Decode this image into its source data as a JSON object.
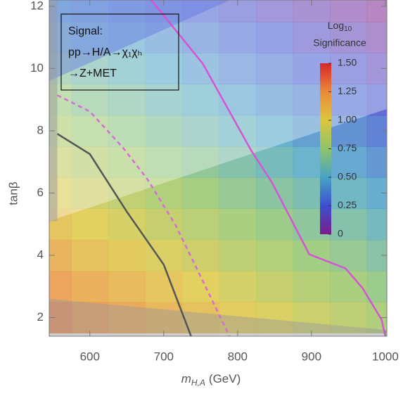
{
  "chart_data": {
    "type": "heatmap",
    "xlabel": [
      "m",
      "H,A",
      "(GeV)"
    ],
    "ylabel": "tanβ",
    "annotation": [
      "Signal:",
      "pp→H/A→χ₁χₕ",
      "→Z+MET"
    ],
    "colorbar_title": [
      "Log",
      "10",
      "Significance"
    ],
    "x": [
      550,
      600,
      650,
      700,
      750,
      800,
      850,
      900,
      950,
      1000
    ],
    "y": [
      2,
      3,
      4,
      5,
      6,
      7,
      8,
      9,
      10,
      11,
      12
    ],
    "z": [
      [
        1.3,
        1.24,
        1.19,
        1.13,
        1.08,
        1.02,
        0.97,
        0.91,
        0.86,
        0.8
      ],
      [
        1.22,
        1.16,
        1.11,
        1.05,
        1.0,
        0.94,
        0.89,
        0.83,
        0.78,
        0.72
      ],
      [
        1.14,
        1.08,
        1.03,
        0.97,
        0.92,
        0.86,
        0.81,
        0.75,
        0.7,
        0.64
      ],
      [
        1.06,
        1.0,
        0.95,
        0.89,
        0.84,
        0.78,
        0.73,
        0.67,
        0.62,
        0.56
      ],
      [
        0.98,
        0.92,
        0.87,
        0.81,
        0.76,
        0.7,
        0.65,
        0.59,
        0.54,
        0.48
      ],
      [
        0.9,
        0.84,
        0.79,
        0.73,
        0.68,
        0.62,
        0.57,
        0.51,
        0.46,
        0.4
      ],
      [
        0.82,
        0.76,
        0.71,
        0.65,
        0.6,
        0.54,
        0.49,
        0.43,
        0.38,
        0.32
      ],
      [
        0.74,
        0.68,
        0.63,
        0.57,
        0.52,
        0.46,
        0.41,
        0.35,
        0.3,
        0.24
      ],
      [
        0.66,
        0.6,
        0.55,
        0.49,
        0.44,
        0.38,
        0.33,
        0.27,
        0.22,
        0.16
      ],
      [
        0.58,
        0.52,
        0.47,
        0.41,
        0.36,
        0.3,
        0.25,
        0.19,
        0.14,
        0.08
      ],
      [
        0.5,
        0.44,
        0.39,
        0.33,
        0.28,
        0.22,
        0.17,
        0.11,
        0.06,
        0.0
      ]
    ],
    "cell_size": [
      50,
      1
    ],
    "xlim": [
      545,
      1002
    ],
    "ylim": [
      1.4,
      12.2
    ],
    "xticks": [
      600,
      700,
      800,
      900,
      1000
    ],
    "yticks": [
      2,
      4,
      6,
      8,
      10,
      12
    ],
    "zlim": [
      0,
      1.5
    ],
    "zticks": [
      0,
      0.25,
      {
        "value": 0.5,
        "label": "0.50"
      },
      0.75,
      {
        "value": 1,
        "label": "1.00"
      },
      1.25,
      {
        "value": 1.5,
        "label": "1.50"
      }
    ],
    "colorscale": [
      "#7a1d8c",
      "#3d4fd0",
      "#47a3c4",
      "#8fc46a",
      "#dcc63e",
      "#ea8a3a",
      "#d8262c"
    ],
    "cell_opacity": 0.82,
    "lines": [
      {
        "color": "#555555",
        "dash": false,
        "x": [
          556,
          600,
          650,
          700,
          737
        ],
        "y": [
          7.9,
          7.25,
          5.4,
          3.7,
          1.4
        ]
      },
      {
        "color": "#d66bd6",
        "dash": true,
        "x": [
          556,
          600,
          645,
          678,
          716,
          753,
          789
        ],
        "y": [
          9.14,
          8.62,
          7.45,
          6.44,
          4.97,
          3.17,
          1.4
        ]
      },
      {
        "color": "#d455d4",
        "dash": false,
        "x": [
          683,
          753,
          819,
          847,
          897,
          946,
          969,
          995,
          1000
        ],
        "y": [
          12.2,
          10.15,
          7.34,
          6.32,
          4.03,
          3.58,
          2.95,
          1.93,
          1.4
        ]
      }
    ],
    "regions": [
      {
        "color": "#ffffff",
        "opacity": 0.35,
        "x": [
          545,
          1002,
          1002,
          545
        ],
        "y": [
          5.1,
          8.7,
          12.2,
          12.2
        ]
      },
      {
        "color": "#5a6ee0",
        "opacity": 0.4,
        "x": [
          545,
          790,
          545
        ],
        "y": [
          9.6,
          12.2,
          12.2
        ]
      },
      {
        "color": "#9a9a9a",
        "opacity": 0.45,
        "x": [
          545,
          1002,
          1002,
          545
        ],
        "y": [
          2.6,
          1.6,
          1.4,
          1.4
        ]
      },
      {
        "color": "#9a9a9a",
        "opacity": 0.5,
        "x": [
          545,
          556,
          556,
          545
        ],
        "y": [
          5.1,
          5.1,
          12.2,
          12.2
        ]
      }
    ]
  }
}
